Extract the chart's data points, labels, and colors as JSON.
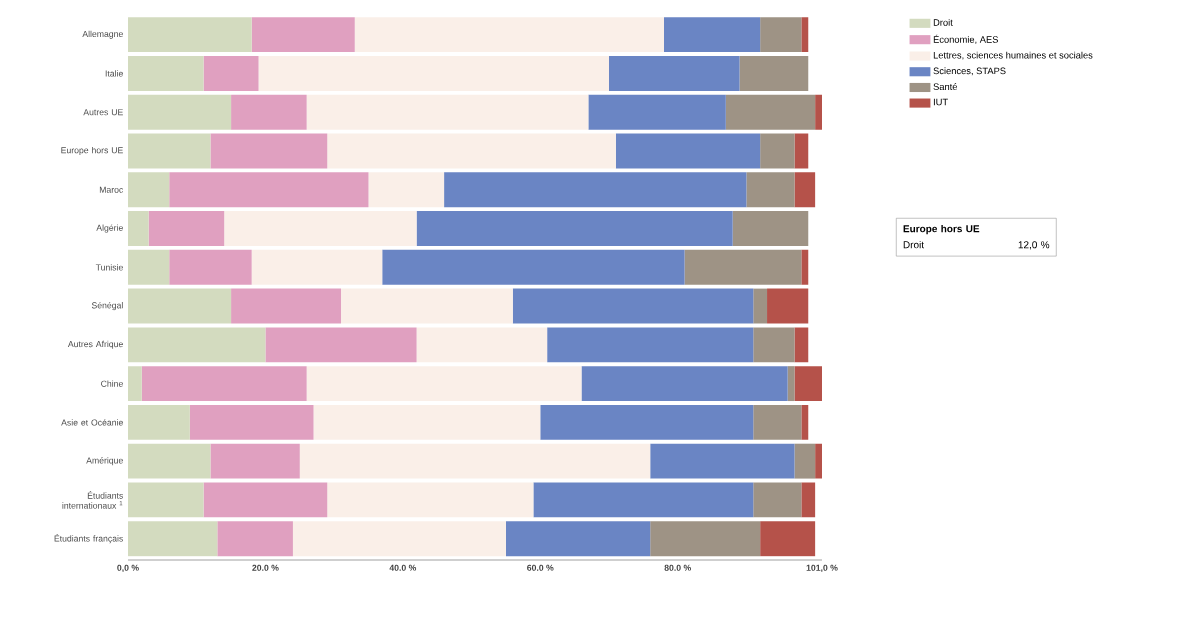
{
  "chart_data": {
    "type": "bar",
    "orientation": "horizontal",
    "stacked": true,
    "categories": [
      "Allemagne",
      "Italie",
      "Autres UE",
      "Europe hors UE",
      "Maroc",
      "Algérie",
      "Tunisie",
      "Sénégal",
      "Autres Afrique",
      "Chine",
      "Asie et Océanie",
      "Amérique",
      "Étudiants internationaux $^{1}$",
      "Étudiants français"
    ],
    "series": [
      {
        "name": "Droit",
        "color": "#d3dbbf",
        "values": [
          18,
          11,
          15,
          12,
          6,
          3,
          6,
          15,
          20,
          2,
          9,
          12,
          11,
          13
        ]
      },
      {
        "name": "Économie, AES",
        "color": "#e0a0c0",
        "values": [
          15,
          8,
          11,
          17,
          29,
          11,
          12,
          16,
          22,
          24,
          18,
          13,
          18,
          11
        ]
      },
      {
        "name": "Lettres, sciences humaines et sociales",
        "color": "#faefe8",
        "values": [
          45,
          51,
          41,
          42,
          11,
          28,
          19,
          25,
          19,
          40,
          33,
          51,
          30,
          31
        ]
      },
      {
        "name": "Sciences, STAPS",
        "color": "#6a85c4",
        "values": [
          14,
          19,
          20,
          21,
          44,
          46,
          44,
          35,
          30,
          30,
          31,
          21,
          32,
          21
        ]
      },
      {
        "name": "Santé",
        "color": "#9e9385",
        "values": [
          6,
          10,
          13,
          5,
          7,
          11,
          17,
          2,
          6,
          1,
          7,
          3,
          7,
          16
        ]
      },
      {
        "name": "IUT",
        "color": "#b5524a",
        "values": [
          1,
          0,
          1,
          2,
          3,
          0,
          1,
          6,
          2,
          4,
          1,
          1,
          2,
          8
        ]
      }
    ],
    "xlim": [
      0,
      101
    ],
    "xticks": [
      {
        "value": 0,
        "label": "0,0 %"
      },
      {
        "value": 20,
        "label": "20.0 %"
      },
      {
        "value": 40,
        "label": "40.0 %"
      },
      {
        "value": 60,
        "label": "60.0 %"
      },
      {
        "value": 80,
        "label": "80.0 %"
      },
      {
        "value": 101,
        "label": "101,0 %"
      }
    ],
    "legend": "top right",
    "annotations": [
      "Europe hors UE",
      "Droit",
      "12,0 %"
    ]
  }
}
